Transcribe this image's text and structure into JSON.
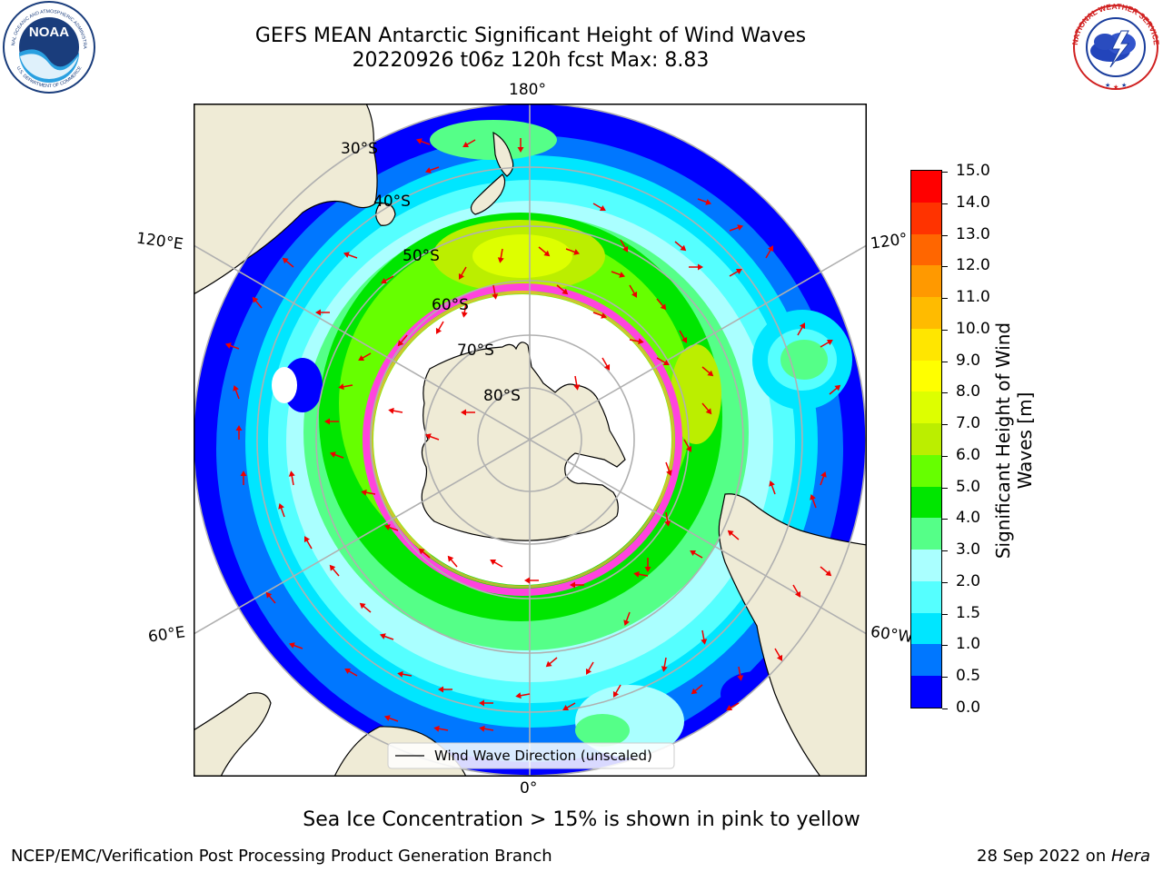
{
  "header": {
    "title_line1": "GEFS MEAN Antarctic Significant Height of Wind Waves",
    "title_line2": "20220926 t06z 120h fcst   Max: 8.83"
  },
  "logos": {
    "noaa_text": "NOAA",
    "noaa_ring_top": "NATIONAL OCEANIC AND ATMOSPHERIC ADMINISTRATION",
    "noaa_ring_bottom": "U.S. DEPARTMENT OF COMMERCE",
    "nws_ring": "NATIONAL WEATHER SERVICE"
  },
  "map": {
    "longitude_labels": [
      "180°",
      "120°E",
      "120°",
      "60°E",
      "60°W",
      "0°"
    ],
    "latitude_labels": [
      "30°S",
      "40°S",
      "50°S",
      "60°S",
      "70°S",
      "80°S"
    ],
    "legend_label": "Wind Wave Direction (unscaled)",
    "colors": {
      "land": "#efebd6",
      "ice_edge": "#ff44dd",
      "arrow": "#ee0000"
    }
  },
  "colorbar": {
    "title_line1": "Significant Height of Wind",
    "title_line2": "Waves [m]",
    "tick_labels": [
      "0.0",
      "0.5",
      "1.0",
      "1.5",
      "2.0",
      "3.0",
      "4.0",
      "5.0",
      "6.0",
      "7.0",
      "8.0",
      "9.0",
      "10.0",
      "11.0",
      "12.0",
      "13.0",
      "14.0",
      "15.0"
    ],
    "colors": [
      "#0000ff",
      "#0077ff",
      "#00e6ff",
      "#55ffff",
      "#aaffff",
      "#55ff88",
      "#00e600",
      "#66ff00",
      "#bbee00",
      "#ddff00",
      "#ffff00",
      "#ffe600",
      "#ffbb00",
      "#ff9900",
      "#ff6600",
      "#ff3300",
      "#ff0000"
    ]
  },
  "subtitle": "Sea Ice Concentration > 15% is shown in pink to yellow",
  "footer": {
    "left": "NCEP/EMC/Verification Post Processing Product Generation Branch",
    "right_date": "28 Sep 2022 on ",
    "right_host": "Hera"
  }
}
